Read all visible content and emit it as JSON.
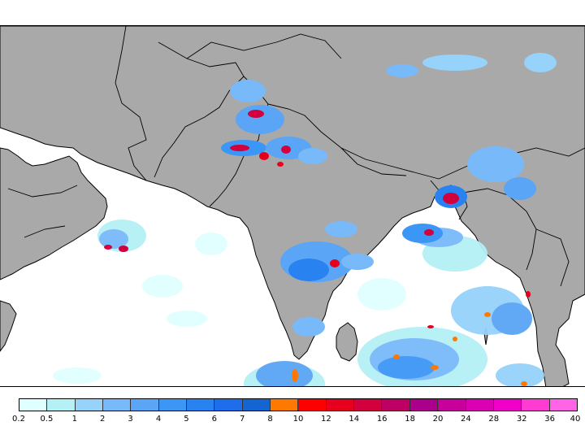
{
  "map": {
    "land_color": "#a9a9a9",
    "ocean_color": "#ffffff",
    "border_color": "#000000"
  },
  "colorbar": {
    "colors": [
      "#e0ffff",
      "#b4f0f5",
      "#96d2fa",
      "#78b9fa",
      "#5aa5f5",
      "#3c96f5",
      "#2882f0",
      "#1e6eeb",
      "#1464d2",
      "#ff7800",
      "#ff0000",
      "#e6001e",
      "#d2003c",
      "#be0064",
      "#aa008c",
      "#c8009b",
      "#dc00b4",
      "#f000c8",
      "#ff3cd2",
      "#ff64e6"
    ],
    "tick_labels": [
      "0.2",
      "0.5",
      "1",
      "2",
      "3",
      "4",
      "5",
      "6",
      "7",
      "8",
      "10",
      "12",
      "14",
      "16",
      "18",
      "20",
      "24",
      "28",
      "32",
      "36",
      "40"
    ]
  }
}
